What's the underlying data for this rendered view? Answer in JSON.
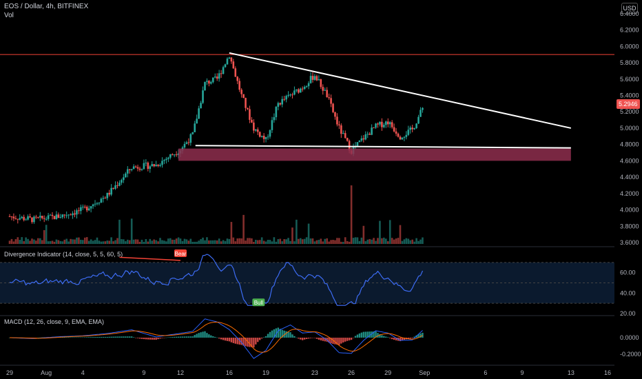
{
  "header": {
    "symbol": "EOS / Dollar, 4h, BITFINEX",
    "volume_label": "Vol",
    "currency": "USD",
    "rsi_label": "Divergence Indicator (14, close, 5, 5, 60, 5)",
    "macd_label": "MACD (12, 26, close, 9, EMA, EMA)"
  },
  "colors": {
    "up": "#26a69a",
    "down": "#ef5350",
    "resistance": "#f44336",
    "trendline": "#ffffff",
    "support_zone": "#8e2e4e",
    "rsi_line": "#3d6cf4",
    "macd_line": "#2962ff",
    "signal_line": "#ff6d00",
    "bear_badge": "#f44336",
    "bull_badge": "#4caf50"
  },
  "chart_data": [
    {
      "type": "candlestick",
      "title": "EOS / Dollar, 4h, BITFINEX",
      "ylabel": "USD",
      "ylim": [
        3.6,
        6.5
      ],
      "y_ticks": [
        "6.4000",
        "6.2000",
        "6.0000",
        "5.8000",
        "5.6000",
        "5.4000",
        "5.2000",
        "5.0000",
        "4.8000",
        "4.6000",
        "4.4000",
        "4.2000",
        "4.0000",
        "3.8000",
        "3.6000"
      ],
      "x_ticks": [
        "29",
        "Aug",
        "4",
        "9",
        "12",
        "16",
        "19",
        "23",
        "26",
        "29",
        "Sep",
        "6",
        "9",
        "13",
        "16"
      ],
      "last_price": "5.2946",
      "series_close_path": [
        [
          "Jul 29",
          3.92
        ],
        [
          "Jul 31",
          3.88
        ],
        [
          "Aug 2",
          3.92
        ],
        [
          "Aug 4",
          4.0
        ],
        [
          "Aug 6",
          4.18
        ],
        [
          "Aug 8",
          4.52
        ],
        [
          "Aug 10",
          4.55
        ],
        [
          "Aug 12",
          4.74
        ],
        [
          "Aug 13",
          4.92
        ],
        [
          "Aug 14",
          5.55
        ],
        [
          "Aug 15",
          5.6
        ],
        [
          "Aug 16",
          5.9
        ],
        [
          "Aug 17",
          5.4
        ],
        [
          "Aug 18",
          5.0
        ],
        [
          "Aug 19",
          4.85
        ],
        [
          "Aug 20",
          5.3
        ],
        [
          "Aug 21",
          5.4
        ],
        [
          "Aug 22",
          5.5
        ],
        [
          "Aug 23",
          5.65
        ],
        [
          "Aug 24",
          5.4
        ],
        [
          "Aug 25",
          5.0
        ],
        [
          "Aug 26",
          4.72
        ],
        [
          "Aug 27",
          4.88
        ],
        [
          "Aug 28",
          5.02
        ],
        [
          "Aug 29",
          5.08
        ],
        [
          "Aug 30",
          4.9
        ],
        [
          "Aug 31",
          4.98
        ],
        [
          "Sep 1",
          5.29
        ]
      ],
      "resistance_level": 5.9,
      "descending_trendline": [
        [
          "Aug 16",
          5.92
        ],
        [
          "Sep 13",
          5.0
        ]
      ],
      "support_line": 4.77,
      "support_zone": [
        4.6,
        4.75
      ]
    },
    {
      "type": "line",
      "title": "Divergence Indicator (14, close, 5, 5, 60, 5)",
      "y_ticks": [
        "60.00",
        "40.00",
        "20.00"
      ],
      "band": [
        30,
        70
      ],
      "annotations": [
        "Bear",
        "Bull"
      ]
    },
    {
      "type": "bar",
      "title": "MACD (12, 26, close, 9, EMA, EMA)",
      "y_ticks": [
        "0.0000",
        "-0.2000"
      ],
      "series": [
        {
          "name": "MACD"
        },
        {
          "name": "Signal"
        }
      ]
    }
  ]
}
